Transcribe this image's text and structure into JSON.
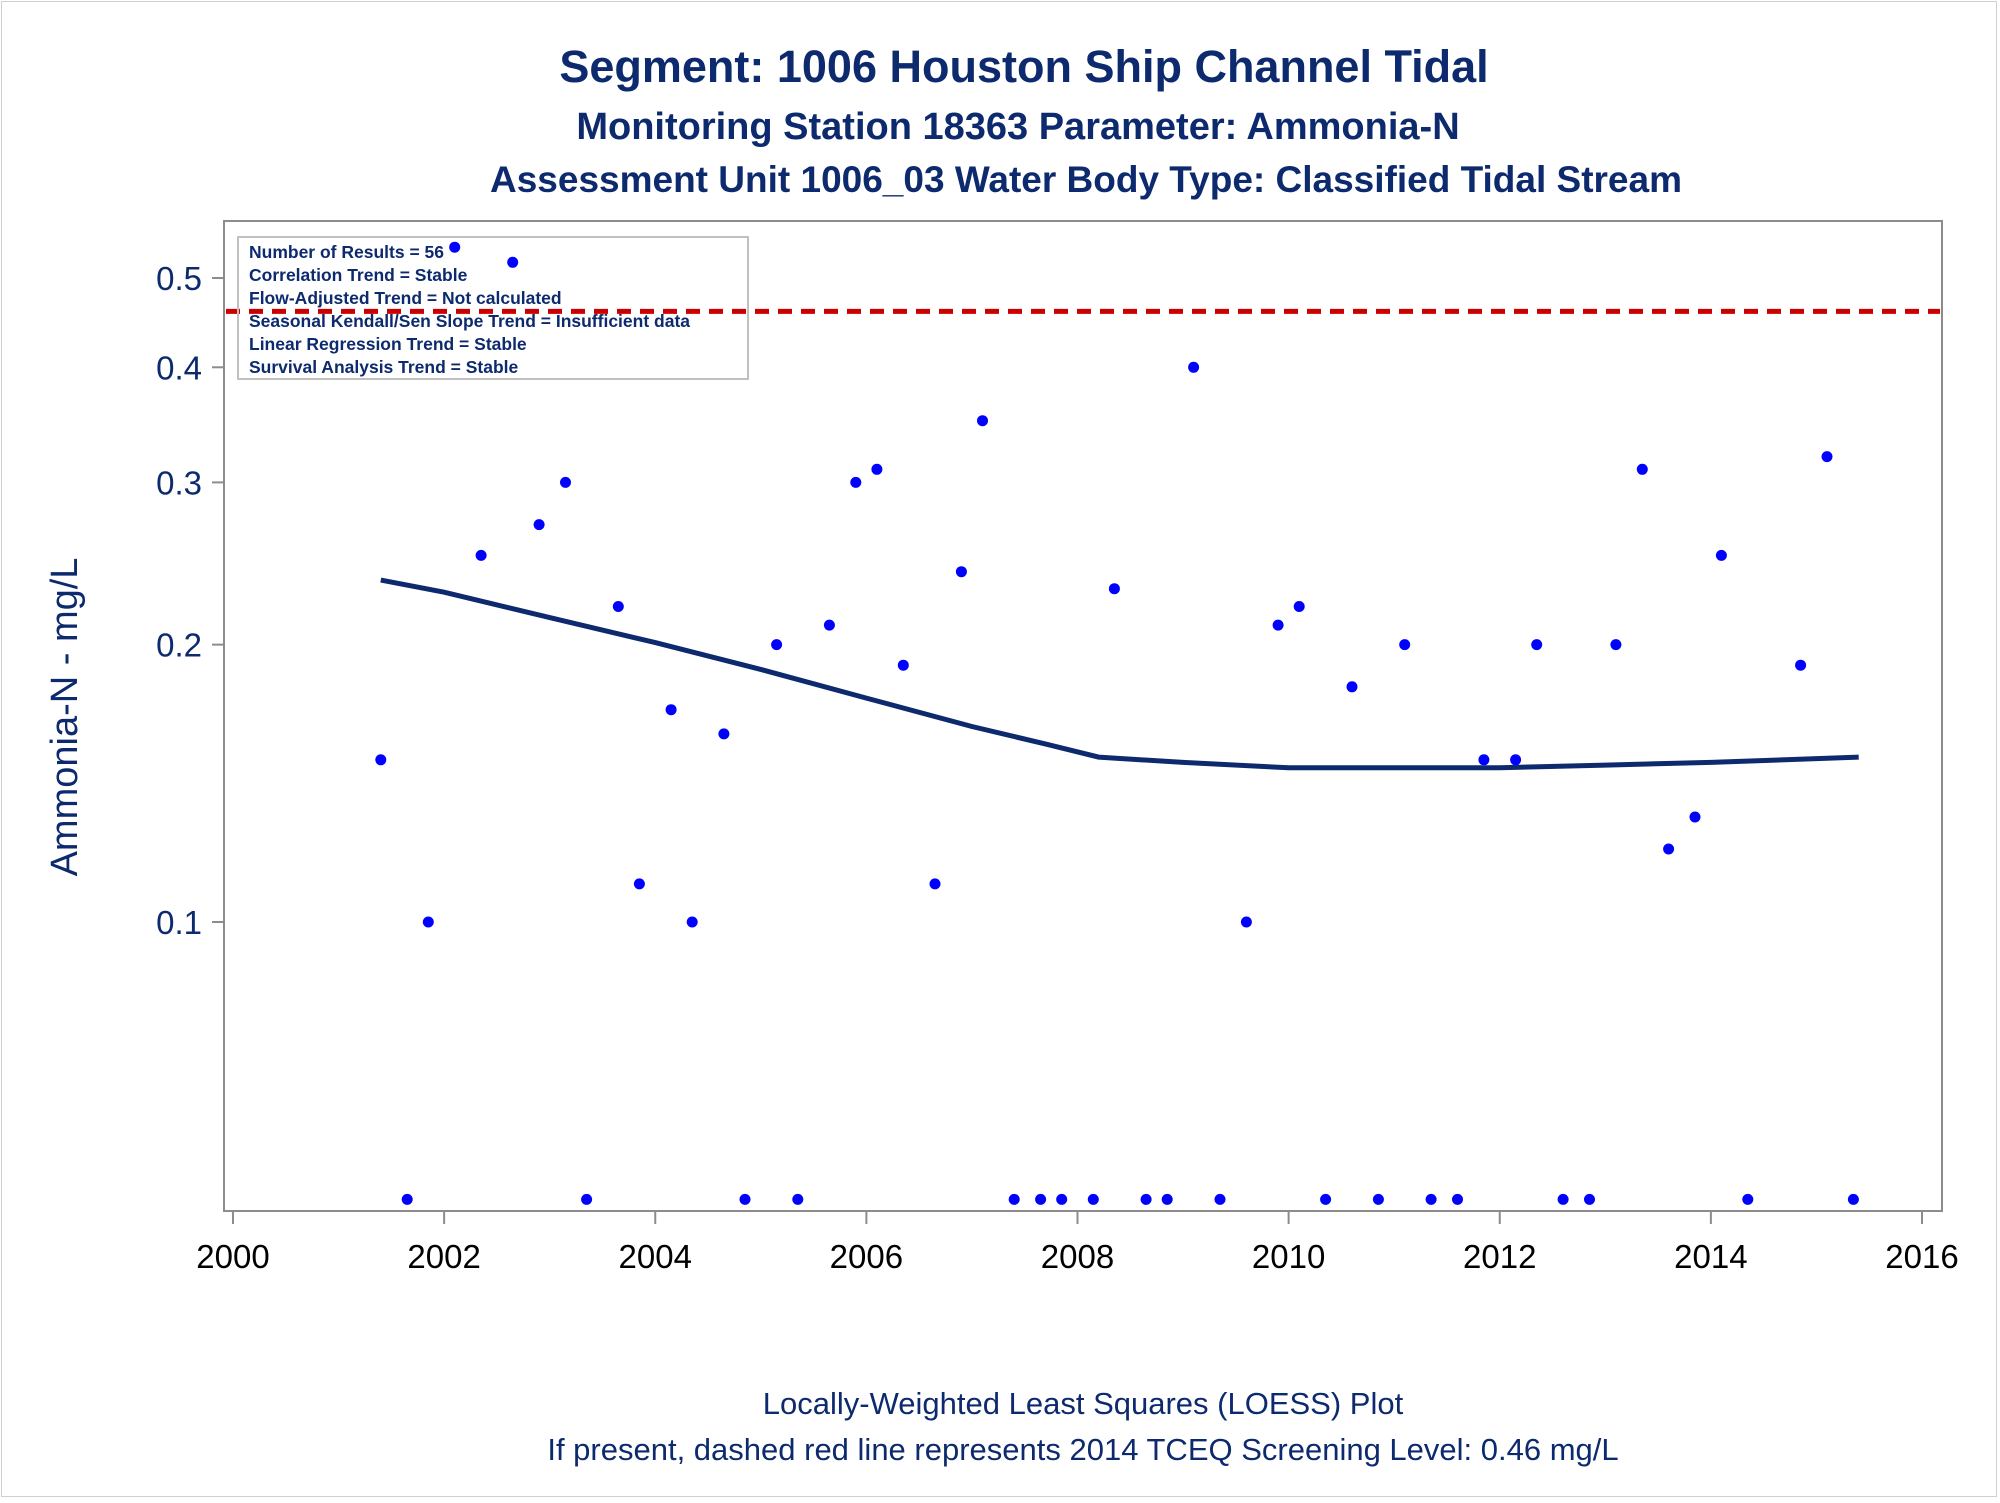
{
  "chart_data": {
    "type": "scatter",
    "title": "Segment: 1006  Houston Ship Channel Tidal",
    "subtitle": "Monitoring Station 18363 Parameter: Ammonia-N",
    "subtitle2": "Assessment Unit 1006_03   Water Body Type: Classified Tidal Stream",
    "xlabel": "",
    "ylabel": "Ammonia-N - mg/L",
    "y_scale": "log",
    "xlim": [
      2000,
      2016
    ],
    "ylim": [
      0.05,
      0.55
    ],
    "x_ticks": [
      2000,
      2002,
      2004,
      2006,
      2008,
      2010,
      2012,
      2014,
      2016
    ],
    "y_ticks": [
      0.1,
      0.2,
      0.3,
      0.4,
      0.5
    ],
    "y_tick_labels": [
      "0.1",
      "0.2",
      "0.3",
      "0.4",
      "0.5"
    ],
    "grid": false,
    "stats_box": [
      "Number of Results = 56",
      "Correlation Trend = Stable",
      "Flow-Adjusted Trend = Not calculated",
      "Seasonal Kendall/Sen Slope Trend = Insufficient data",
      "Linear Regression Trend = Stable",
      "Survival Analysis Trend = Stable"
    ],
    "screening_level": 0.46,
    "footnotes": [
      "Locally-Weighted Least Squares (LOESS) Plot",
      "If present, dashed red line represents 2014 TCEQ Screening Level: 0.46 mg/L"
    ],
    "points": [
      {
        "x": 2001.4,
        "y": 0.15
      },
      {
        "x": 2001.65,
        "y": 0.05
      },
      {
        "x": 2001.85,
        "y": 0.1
      },
      {
        "x": 2002.1,
        "y": 0.54
      },
      {
        "x": 2002.35,
        "y": 0.25
      },
      {
        "x": 2002.65,
        "y": 0.52
      },
      {
        "x": 2002.9,
        "y": 0.27
      },
      {
        "x": 2003.15,
        "y": 0.3
      },
      {
        "x": 2003.35,
        "y": 0.05
      },
      {
        "x": 2003.65,
        "y": 0.22
      },
      {
        "x": 2003.85,
        "y": 0.11
      },
      {
        "x": 2004.15,
        "y": 0.17
      },
      {
        "x": 2004.35,
        "y": 0.1
      },
      {
        "x": 2004.65,
        "y": 0.16
      },
      {
        "x": 2004.85,
        "y": 0.05
      },
      {
        "x": 2005.15,
        "y": 0.2
      },
      {
        "x": 2005.35,
        "y": 0.05
      },
      {
        "x": 2005.65,
        "y": 0.21
      },
      {
        "x": 2005.9,
        "y": 0.3
      },
      {
        "x": 2006.1,
        "y": 0.31
      },
      {
        "x": 2006.35,
        "y": 0.19
      },
      {
        "x": 2006.65,
        "y": 0.11
      },
      {
        "x": 2006.9,
        "y": 0.24
      },
      {
        "x": 2007.1,
        "y": 0.35
      },
      {
        "x": 2007.4,
        "y": 0.05
      },
      {
        "x": 2007.65,
        "y": 0.05
      },
      {
        "x": 2007.85,
        "y": 0.05
      },
      {
        "x": 2008.15,
        "y": 0.05
      },
      {
        "x": 2008.35,
        "y": 0.23
      },
      {
        "x": 2008.65,
        "y": 0.05
      },
      {
        "x": 2008.85,
        "y": 0.05
      },
      {
        "x": 2009.1,
        "y": 0.4
      },
      {
        "x": 2009.35,
        "y": 0.05
      },
      {
        "x": 2009.6,
        "y": 0.1
      },
      {
        "x": 2009.9,
        "y": 0.21
      },
      {
        "x": 2010.1,
        "y": 0.22
      },
      {
        "x": 2010.35,
        "y": 0.05
      },
      {
        "x": 2010.6,
        "y": 0.18
      },
      {
        "x": 2010.85,
        "y": 0.05
      },
      {
        "x": 2011.1,
        "y": 0.2
      },
      {
        "x": 2011.35,
        "y": 0.05
      },
      {
        "x": 2011.6,
        "y": 0.05
      },
      {
        "x": 2011.85,
        "y": 0.15
      },
      {
        "x": 2012.15,
        "y": 0.15
      },
      {
        "x": 2012.35,
        "y": 0.2
      },
      {
        "x": 2012.6,
        "y": 0.05
      },
      {
        "x": 2012.85,
        "y": 0.05
      },
      {
        "x": 2013.1,
        "y": 0.2
      },
      {
        "x": 2013.35,
        "y": 0.31
      },
      {
        "x": 2013.6,
        "y": 0.12
      },
      {
        "x": 2013.85,
        "y": 0.13
      },
      {
        "x": 2014.1,
        "y": 0.25
      },
      {
        "x": 2014.35,
        "y": 0.05
      },
      {
        "x": 2014.85,
        "y": 0.19
      },
      {
        "x": 2015.1,
        "y": 0.32
      },
      {
        "x": 2015.35,
        "y": 0.05
      }
    ],
    "loess": [
      {
        "x": 2001.4,
        "y": 0.235
      },
      {
        "x": 2002.0,
        "y": 0.228
      },
      {
        "x": 2003.0,
        "y": 0.214
      },
      {
        "x": 2004.0,
        "y": 0.201
      },
      {
        "x": 2005.0,
        "y": 0.188
      },
      {
        "x": 2006.0,
        "y": 0.175
      },
      {
        "x": 2007.0,
        "y": 0.163
      },
      {
        "x": 2007.7,
        "y": 0.156
      },
      {
        "x": 2008.2,
        "y": 0.151
      },
      {
        "x": 2009.0,
        "y": 0.149
      },
      {
        "x": 2010.0,
        "y": 0.147
      },
      {
        "x": 2011.0,
        "y": 0.147
      },
      {
        "x": 2012.0,
        "y": 0.147
      },
      {
        "x": 2013.0,
        "y": 0.148
      },
      {
        "x": 2014.0,
        "y": 0.149
      },
      {
        "x": 2015.4,
        "y": 0.151
      }
    ],
    "colors": {
      "points": "#0000ff",
      "loess": "#0d2a6e",
      "screening": "#cc0000",
      "axes": "#8c8c8c",
      "text": "#0d2a6e"
    }
  }
}
